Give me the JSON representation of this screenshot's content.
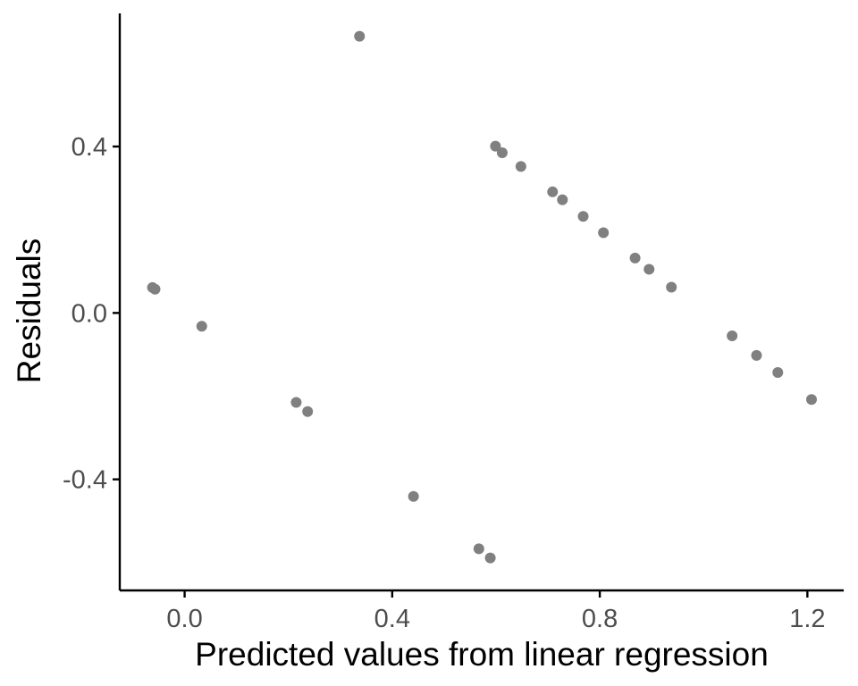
{
  "chart_data": {
    "type": "scatter",
    "title": "",
    "xlabel": "Predicted values from linear regression",
    "ylabel": "Residuals",
    "xlim": [
      -0.125,
      1.27
    ],
    "ylim": [
      -0.667,
      0.72
    ],
    "xticks": [
      0.0,
      0.4,
      0.8,
      1.2
    ],
    "xtick_labels": [
      "0.0",
      "0.4",
      "0.8",
      "1.2"
    ],
    "yticks": [
      -0.4,
      0.0,
      0.4
    ],
    "ytick_labels": [
      "-0.4",
      "0.0",
      "0.4"
    ],
    "grid": false,
    "legend": "none",
    "point_color": "#808080",
    "x": [
      -0.062,
      -0.057,
      0.033,
      0.215,
      0.237,
      0.337,
      0.441,
      0.567,
      0.589,
      0.599,
      0.612,
      0.648,
      0.709,
      0.728,
      0.768,
      0.807,
      0.868,
      0.895,
      0.938,
      1.055,
      1.102,
      1.143,
      1.208
    ],
    "y": [
      0.061,
      0.057,
      -0.032,
      -0.215,
      -0.237,
      0.665,
      -0.441,
      -0.567,
      -0.589,
      0.401,
      0.385,
      0.352,
      0.291,
      0.272,
      0.232,
      0.193,
      0.132,
      0.105,
      0.062,
      -0.055,
      -0.102,
      -0.143,
      -0.208
    ]
  }
}
